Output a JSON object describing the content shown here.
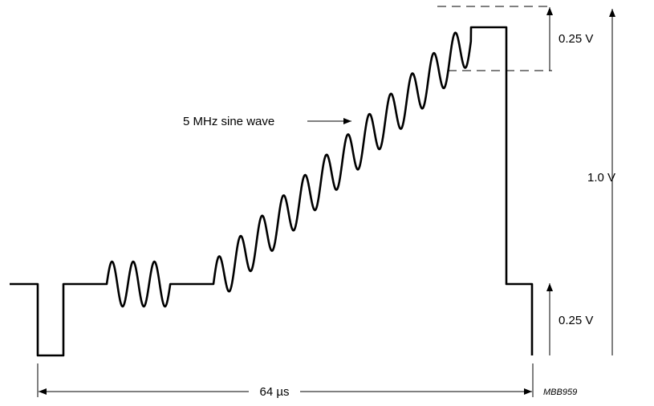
{
  "diagram": {
    "label_sine": "5 MHz sine wave",
    "label_amp_top": "0.25 V",
    "label_amp_full": "1.0 V",
    "label_amp_sync": "0.25 V",
    "label_period": "64 µs",
    "figure_ref": "MBB959"
  },
  "colors": {
    "stroke": "#000000",
    "background": "#ffffff"
  }
}
